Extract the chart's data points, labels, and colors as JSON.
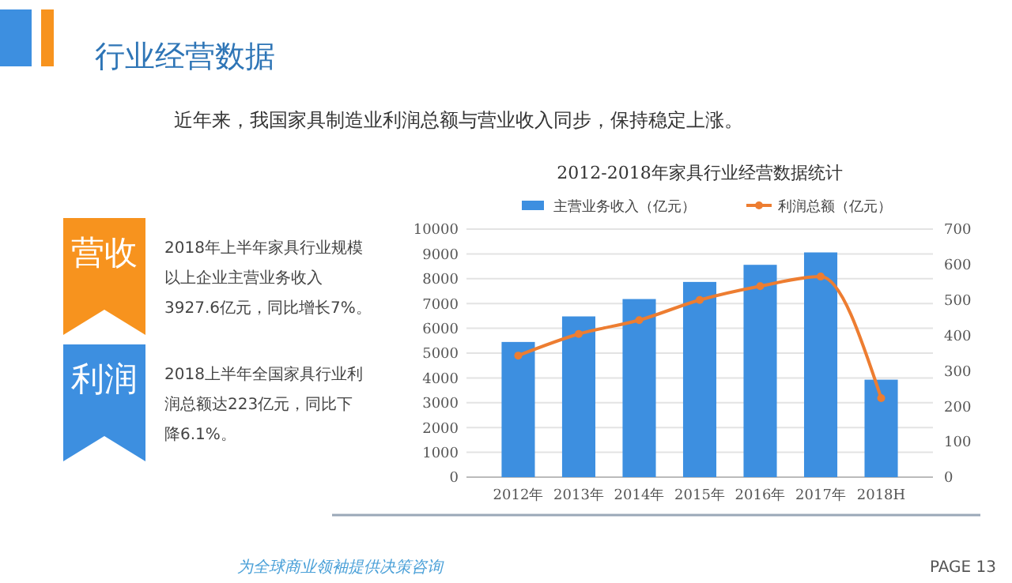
{
  "chart_data": {
    "type": "bar",
    "title": "2012-2018年家具行业经营数据统计",
    "categories": [
      "2012年",
      "2013年",
      "2014年",
      "2015年",
      "2016年",
      "2017年",
      "2018H"
    ],
    "series": [
      {
        "name": "主营业务收入（亿元）",
        "color": "#3d8fe0",
        "values": [
          5450,
          6480,
          7180,
          7870,
          8560,
          9060,
          3930
        ]
      },
      {
        "name": "利润总额（亿元）",
        "type": "line",
        "axis": "y2",
        "color": "#ed7d31",
        "values": [
          343,
          404,
          443,
          500,
          539,
          566,
          223
        ]
      }
    ],
    "ylim": [
      0,
      10000
    ],
    "yticks": [
      0,
      1000,
      2000,
      3000,
      4000,
      5000,
      6000,
      7000,
      8000,
      9000,
      10000
    ],
    "y2lim": [
      0,
      700
    ],
    "y2ticks": [
      0,
      100,
      200,
      300,
      400,
      500,
      600,
      700
    ],
    "grid": "y",
    "legend": "top",
    "marker": "circle",
    "line_style": "solid",
    "annotations": [
      "行业经营数据",
      "近年来，我国家具制造业利润总额与营业收入同步，保持稳定上涨。",
      "营收",
      "2018年上半年家具行业规模",
      "以上企业主营业务收入",
      "3927.6亿元，同比增长7%。",
      "利润",
      "2018上半年全国家具行业利",
      "润总额达223亿元，同比下",
      "降6.1%。",
      "为全球商业领袖提供决策咨询",
      "PAGE 13"
    ]
  }
}
